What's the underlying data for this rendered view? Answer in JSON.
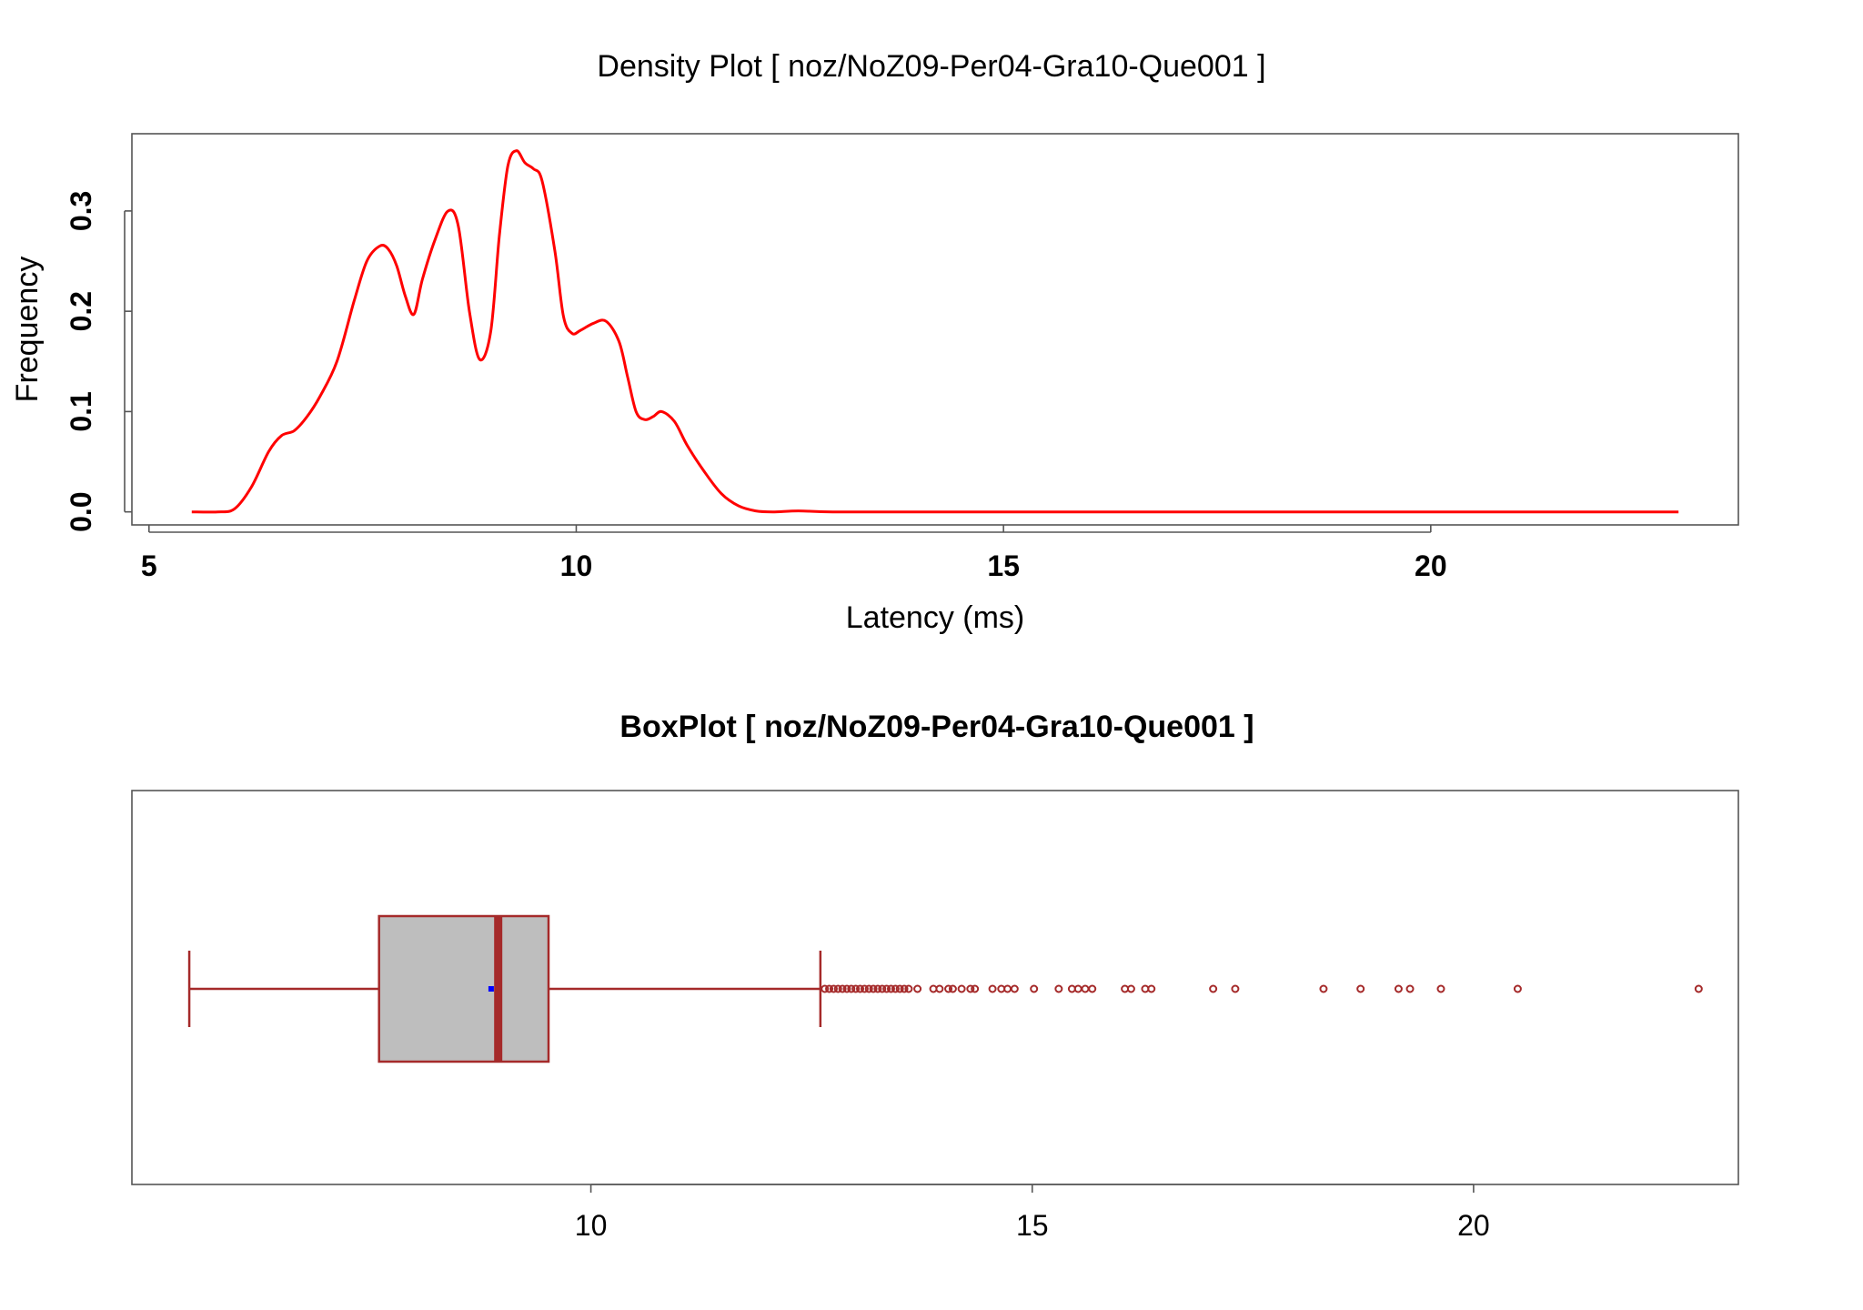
{
  "chart_data": [
    {
      "type": "line",
      "title": "Density Plot [ noz/NoZ09-Per04-Gra10-Que001 ]",
      "xlabel": "Latency (ms)",
      "ylabel": "Frequency",
      "xlim": [
        4.8,
        23.6
      ],
      "ylim": [
        -0.013,
        0.377
      ],
      "xticks": [
        5,
        10,
        15,
        20
      ],
      "yticks": [
        0.0,
        0.1,
        0.2,
        0.3
      ],
      "xtick_labels": [
        "5",
        "10",
        "15",
        "20"
      ],
      "ytick_labels": [
        "0.0",
        "0.1",
        "0.2",
        "0.3"
      ],
      "color": "#ff0000",
      "grid": false,
      "x": [
        5.5,
        5.8,
        6.0,
        6.2,
        6.4,
        6.55,
        6.7,
        6.85,
        7.0,
        7.2,
        7.4,
        7.55,
        7.7,
        7.8,
        7.9,
        8.0,
        8.1,
        8.2,
        8.35,
        8.5,
        8.62,
        8.75,
        8.87,
        9.0,
        9.1,
        9.2,
        9.3,
        9.4,
        9.5,
        9.6,
        9.75,
        9.85,
        9.95,
        10.05,
        10.2,
        10.35,
        10.5,
        10.6,
        10.7,
        10.8,
        10.9,
        11.0,
        11.15,
        11.3,
        11.5,
        11.7,
        11.9,
        12.1,
        12.3,
        12.6,
        13.0,
        14.0,
        16.0,
        18.0,
        20.0,
        22.9
      ],
      "y": [
        0.0,
        0.0,
        0.003,
        0.025,
        0.06,
        0.076,
        0.081,
        0.095,
        0.115,
        0.15,
        0.21,
        0.25,
        0.265,
        0.262,
        0.245,
        0.215,
        0.197,
        0.232,
        0.272,
        0.3,
        0.285,
        0.2,
        0.152,
        0.18,
        0.275,
        0.345,
        0.36,
        0.348,
        0.342,
        0.33,
        0.26,
        0.195,
        0.178,
        0.181,
        0.188,
        0.19,
        0.17,
        0.135,
        0.1,
        0.092,
        0.095,
        0.1,
        0.09,
        0.066,
        0.04,
        0.018,
        0.006,
        0.001,
        0.0,
        0.001,
        0.0,
        0.0,
        0.0,
        0.0,
        0.0,
        0.0
      ]
    },
    {
      "type": "box",
      "title": "BoxPlot [ noz/NoZ09-Per04-Gra10-Que001 ]",
      "xlim": [
        4.8,
        23.0
      ],
      "xticks": [
        10,
        15,
        20
      ],
      "xtick_labels": [
        "10",
        "15",
        "20"
      ],
      "whisker_low": 5.45,
      "q1": 7.6,
      "median": 8.95,
      "q3": 9.52,
      "whisker_high": 12.6,
      "mean": 8.87,
      "box_fill": "#bebebe",
      "box_color": "#a52a2a",
      "mean_color": "#0000ff",
      "outliers": [
        12.65,
        12.7,
        12.75,
        12.8,
        12.85,
        12.9,
        12.95,
        13.0,
        13.05,
        13.1,
        13.15,
        13.2,
        13.25,
        13.3,
        13.35,
        13.4,
        13.45,
        13.5,
        13.55,
        13.6,
        13.7,
        13.88,
        13.95,
        14.05,
        14.1,
        14.2,
        14.3,
        14.35,
        14.55,
        14.65,
        14.72,
        14.8,
        15.02,
        15.3,
        15.45,
        15.52,
        15.6,
        15.68,
        16.05,
        16.12,
        16.28,
        16.35,
        17.05,
        17.3,
        18.3,
        18.72,
        19.15,
        19.28,
        19.63,
        20.5,
        22.55
      ]
    }
  ]
}
